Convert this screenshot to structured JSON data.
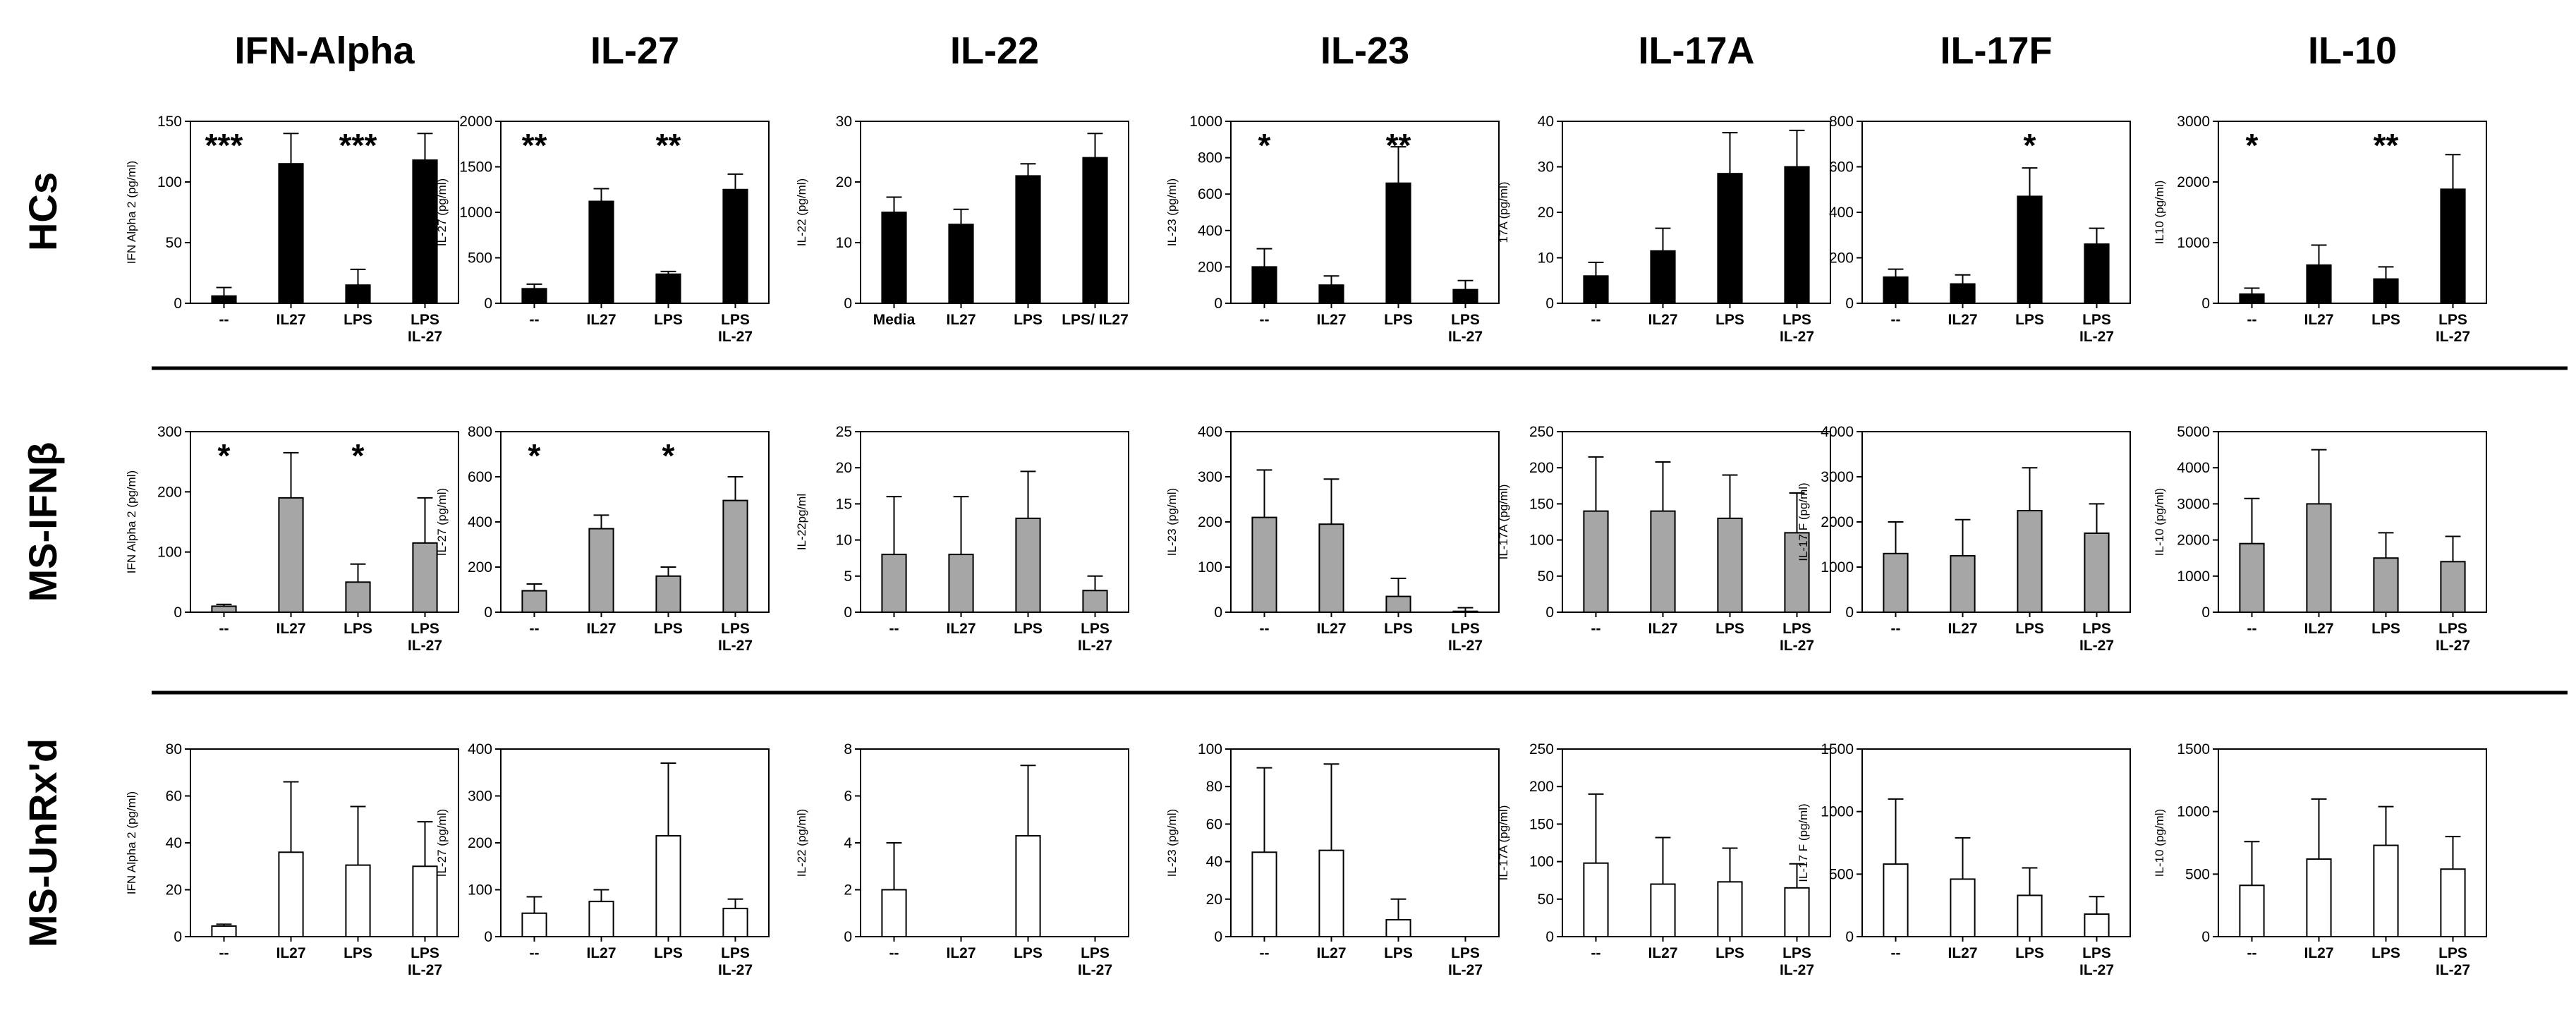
{
  "columns": [
    "IFN-Alpha",
    "IL-27",
    "IL-22",
    "IL-23",
    "IL-17A",
    "IL-17F",
    "IL-10"
  ],
  "rows": [
    {
      "label": "HCs",
      "fill": "#000000"
    },
    {
      "label": "MS-IFNβ",
      "fill": "#a6a6a6"
    },
    {
      "label": "MS-UnRx'd",
      "fill": "#ffffff"
    }
  ],
  "colors": {
    "bar_edge": "#000000",
    "separator": "#000000",
    "text": "#000000"
  },
  "chart_data": [
    {
      "type": "bar",
      "row": "HCs",
      "column": "IFN-Alpha",
      "ylabel": "IFN Alpha 2 (pg/ml)",
      "categories": [
        "--",
        "IL27",
        "LPS",
        "LPS\nIL-27"
      ],
      "values": [
        6,
        115,
        15,
        118
      ],
      "errors": [
        7,
        25,
        13,
        22
      ],
      "ylim": [
        0,
        150
      ],
      "yticks": [
        0,
        50,
        100,
        150
      ],
      "annotations": [
        {
          "index": 1,
          "text": "***"
        },
        {
          "index": 3,
          "text": "***"
        }
      ]
    },
    {
      "type": "bar",
      "row": "HCs",
      "column": "IL-27",
      "ylabel": "IL-27 (pg/ml)",
      "categories": [
        "--",
        "IL27",
        "LPS",
        "LPS\nIL-27"
      ],
      "values": [
        160,
        1120,
        320,
        1250
      ],
      "errors": [
        50,
        140,
        30,
        170
      ],
      "ylim": [
        0,
        2000
      ],
      "yticks": [
        0,
        500,
        1000,
        1500,
        2000
      ],
      "annotations": [
        {
          "index": 1,
          "text": "**"
        },
        {
          "index": 3,
          "text": "**"
        }
      ]
    },
    {
      "type": "bar",
      "row": "HCs",
      "column": "IL-22",
      "ylabel": "IL-22 (pg/ml)",
      "categories": [
        "Media",
        "IL27",
        "LPS",
        "LPS/ IL27"
      ],
      "values": [
        15,
        13,
        21,
        24
      ],
      "errors": [
        2.5,
        2.5,
        2,
        4
      ],
      "ylim": [
        0,
        30
      ],
      "yticks": [
        0,
        10,
        20,
        30
      ],
      "annotations": []
    },
    {
      "type": "bar",
      "row": "HCs",
      "column": "IL-23",
      "ylabel": "IL-23 (pg/ml)",
      "categories": [
        "--",
        "IL27",
        "LPS",
        "LPS\nIL-27"
      ],
      "values": [
        200,
        100,
        660,
        75
      ],
      "errors": [
        100,
        50,
        200,
        50
      ],
      "ylim": [
        0,
        1000
      ],
      "yticks": [
        0,
        200,
        400,
        600,
        800,
        1000
      ],
      "annotations": [
        {
          "index": 1,
          "text": "*"
        },
        {
          "index": 3,
          "text": "**"
        }
      ]
    },
    {
      "type": "bar",
      "row": "HCs",
      "column": "IL-17A",
      "ylabel": "17A (pg/ml)",
      "categories": [
        "--",
        "IL27",
        "LPS",
        "LPS\nIL-27"
      ],
      "values": [
        6,
        11.5,
        28.5,
        30
      ],
      "errors": [
        3,
        5,
        9,
        8
      ],
      "ylim": [
        0,
        40
      ],
      "yticks": [
        0,
        10,
        20,
        30,
        40
      ],
      "annotations": []
    },
    {
      "type": "bar",
      "row": "HCs",
      "column": "IL-17F",
      "ylabel": "17 F (pg/ml)",
      "categories": [
        "--",
        "IL27",
        "LPS",
        "LPS\nIL-27"
      ],
      "values": [
        115,
        85,
        470,
        260
      ],
      "errors": [
        35,
        40,
        125,
        70
      ],
      "ylim": [
        0,
        800
      ],
      "yticks": [
        0,
        200,
        400,
        600,
        800
      ],
      "annotations": [
        {
          "index": 3,
          "text": "*"
        }
      ]
    },
    {
      "type": "bar",
      "row": "HCs",
      "column": "IL-10",
      "ylabel": "IL10 (pg/ml)",
      "categories": [
        "--",
        "IL27",
        "LPS",
        "LPS\nIL-27"
      ],
      "values": [
        150,
        630,
        400,
        1880
      ],
      "errors": [
        100,
        330,
        200,
        570
      ],
      "ylim": [
        0,
        3000
      ],
      "yticks": [
        0,
        1000,
        2000,
        3000
      ],
      "annotations": [
        {
          "index": 1,
          "text": "*"
        },
        {
          "index": 3,
          "text": "**"
        }
      ]
    },
    {
      "type": "bar",
      "row": "MS-IFNβ",
      "column": "IFN-Alpha",
      "ylabel": "IFN Alpha 2 (pg/ml)",
      "categories": [
        "--",
        "IL27",
        "LPS",
        "LPS\nIL-27"
      ],
      "values": [
        10,
        190,
        50,
        115
      ],
      "errors": [
        3,
        75,
        30,
        75
      ],
      "ylim": [
        0,
        300
      ],
      "yticks": [
        0,
        100,
        200,
        300
      ],
      "annotations": [
        {
          "index": 1,
          "text": "*"
        },
        {
          "index": 3,
          "text": "*"
        }
      ]
    },
    {
      "type": "bar",
      "row": "MS-IFNβ",
      "column": "IL-27",
      "ylabel": "IL-27 (pg/ml)",
      "categories": [
        "--",
        "IL27",
        "LPS",
        "LPS\nIL-27"
      ],
      "values": [
        95,
        370,
        160,
        495
      ],
      "errors": [
        30,
        60,
        40,
        105
      ],
      "ylim": [
        0,
        800
      ],
      "yticks": [
        0,
        200,
        400,
        600,
        800
      ],
      "annotations": [
        {
          "index": 1,
          "text": "*"
        },
        {
          "index": 3,
          "text": "*"
        }
      ]
    },
    {
      "type": "bar",
      "row": "MS-IFNβ",
      "column": "IL-22",
      "ylabel": "IL-22pg/ml",
      "categories": [
        "--",
        "IL27",
        "LPS",
        "LPS\nIL-27"
      ],
      "values": [
        8,
        8,
        13,
        3
      ],
      "errors": [
        8,
        8,
        6.5,
        2
      ],
      "ylim": [
        0,
        25
      ],
      "yticks": [
        0,
        5,
        10,
        15,
        20,
        25
      ],
      "annotations": []
    },
    {
      "type": "bar",
      "row": "MS-IFNβ",
      "column": "IL-23",
      "ylabel": "IL-23 (pg/ml)",
      "categories": [
        "--",
        "IL27",
        "LPS",
        "LPS\nIL-27"
      ],
      "values": [
        210,
        195,
        35,
        2
      ],
      "errors": [
        105,
        100,
        40,
        8
      ],
      "ylim": [
        0,
        400
      ],
      "yticks": [
        0,
        100,
        200,
        300,
        400
      ],
      "annotations": []
    },
    {
      "type": "bar",
      "row": "MS-IFNβ",
      "column": "IL-17A",
      "ylabel": "IL-17A (pg/ml)",
      "categories": [
        "--",
        "IL27",
        "LPS",
        "LPS\nIL-27"
      ],
      "values": [
        140,
        140,
        130,
        110
      ],
      "errors": [
        75,
        68,
        60,
        55
      ],
      "ylim": [
        0,
        250
      ],
      "yticks": [
        0,
        50,
        100,
        150,
        200,
        250
      ],
      "annotations": []
    },
    {
      "type": "bar",
      "row": "MS-IFNβ",
      "column": "IL-17F",
      "ylabel": "IL-17 F (pg/ml)",
      "categories": [
        "--",
        "IL27",
        "LPS",
        "LPS\nIL-27"
      ],
      "values": [
        1300,
        1250,
        2250,
        1750
      ],
      "errors": [
        700,
        800,
        950,
        650
      ],
      "ylim": [
        0,
        4000
      ],
      "yticks": [
        0,
        1000,
        2000,
        3000,
        4000
      ],
      "annotations": []
    },
    {
      "type": "bar",
      "row": "MS-IFNβ",
      "column": "IL-10",
      "ylabel": "IL-10 (pg/ml)",
      "categories": [
        "--",
        "IL27",
        "LPS",
        "LPS\nIL-27"
      ],
      "values": [
        1900,
        3000,
        1500,
        1400
      ],
      "errors": [
        1250,
        1500,
        700,
        700
      ],
      "ylim": [
        0,
        5000
      ],
      "yticks": [
        0,
        1000,
        2000,
        3000,
        4000,
        5000
      ],
      "annotations": []
    },
    {
      "type": "bar",
      "row": "MS-UnRx'd",
      "column": "IFN-Alpha",
      "ylabel": "IFN Alpha 2 (pg/ml)",
      "categories": [
        "--",
        "IL27",
        "LPS",
        "LPS\nIL-27"
      ],
      "values": [
        4.5,
        36,
        30.5,
        30
      ],
      "errors": [
        0.8,
        30,
        25,
        19
      ],
      "ylim": [
        0,
        80
      ],
      "yticks": [
        0,
        20,
        40,
        60,
        80
      ],
      "annotations": []
    },
    {
      "type": "bar",
      "row": "MS-UnRx'd",
      "column": "IL-27",
      "ylabel": "IL-27 (pg/ml)",
      "categories": [
        "--",
        "IL27",
        "LPS",
        "LPS\nIL-27"
      ],
      "values": [
        50,
        75,
        215,
        60
      ],
      "errors": [
        35,
        25,
        155,
        20
      ],
      "ylim": [
        0,
        400
      ],
      "yticks": [
        0,
        100,
        200,
        300,
        400
      ],
      "annotations": []
    },
    {
      "type": "bar",
      "row": "MS-UnRx'd",
      "column": "IL-22",
      "ylabel": "IL-22 (pg/ml)",
      "categories": [
        "--",
        "IL27",
        "LPS",
        "LPS\nIL-27"
      ],
      "values": [
        2,
        0,
        4.3,
        0
      ],
      "errors": [
        2,
        0,
        3,
        0
      ],
      "ylim": [
        0,
        8
      ],
      "yticks": [
        0,
        2,
        4,
        6,
        8
      ],
      "annotations": []
    },
    {
      "type": "bar",
      "row": "MS-UnRx'd",
      "column": "IL-23",
      "ylabel": "IL-23 (pg/ml)",
      "categories": [
        "--",
        "IL27",
        "LPS",
        "LPS\nIL-27"
      ],
      "values": [
        45,
        46,
        9,
        0
      ],
      "errors": [
        45,
        46,
        11,
        0
      ],
      "ylim": [
        0,
        100
      ],
      "yticks": [
        0,
        20,
        40,
        60,
        80,
        100
      ],
      "annotations": []
    },
    {
      "type": "bar",
      "row": "MS-UnRx'd",
      "column": "IL-17A",
      "ylabel": "IL-17A (pg/ml)",
      "categories": [
        "--",
        "IL27",
        "LPS",
        "LPS\nIL-27"
      ],
      "values": [
        98,
        70,
        73,
        65
      ],
      "errors": [
        92,
        62,
        45,
        32
      ],
      "ylim": [
        0,
        250
      ],
      "yticks": [
        0,
        50,
        100,
        150,
        200,
        250
      ],
      "annotations": []
    },
    {
      "type": "bar",
      "row": "MS-UnRx'd",
      "column": "IL-17F",
      "ylabel": "IL-17 F (pg/ml)",
      "categories": [
        "--",
        "IL27",
        "LPS",
        "LPS\nIL-27"
      ],
      "values": [
        580,
        460,
        330,
        180
      ],
      "errors": [
        520,
        330,
        220,
        140
      ],
      "ylim": [
        0,
        1500
      ],
      "yticks": [
        0,
        500,
        1000,
        1500
      ],
      "annotations": []
    },
    {
      "type": "bar",
      "row": "MS-UnRx'd",
      "column": "IL-10",
      "ylabel": "IL-10 (pg/ml)",
      "categories": [
        "--",
        "IL27",
        "LPS",
        "LPS\nIL-27"
      ],
      "values": [
        410,
        620,
        730,
        540
      ],
      "errors": [
        350,
        480,
        310,
        260
      ],
      "ylim": [
        0,
        1500
      ],
      "yticks": [
        0,
        500,
        1000,
        1500
      ],
      "annotations": []
    }
  ]
}
